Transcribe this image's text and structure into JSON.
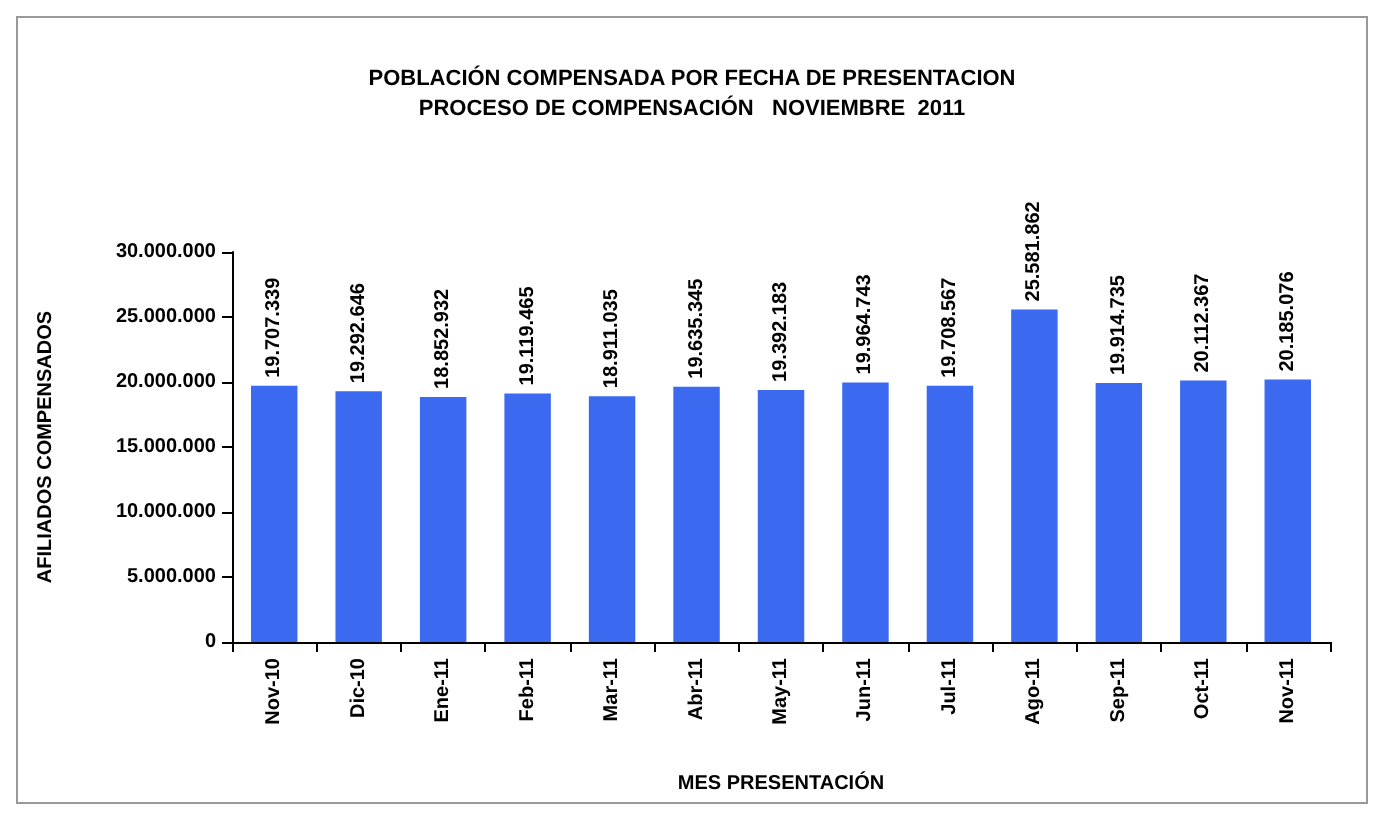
{
  "chart_data": {
    "type": "bar",
    "title": "POBLACIÓN COMPENSADA POR FECHA DE PRESENTACION",
    "subtitle": "PROCESO DE COMPENSACIÓN   NOVIEMBRE  2011",
    "xlabel": "MES PRESENTACIÓN",
    "ylabel": "AFILIADOS COMPENSADOS",
    "categories": [
      "Nov-10",
      "Dic-10",
      "Ene-11",
      "Feb-11",
      "Mar-11",
      "Abr-11",
      "May-11",
      "Jun-11",
      "Jul-11",
      "Ago-11",
      "Sep-11",
      "Oct-11",
      "Nov-11"
    ],
    "values": [
      19707339,
      19292646,
      18852932,
      19119465,
      18911035,
      19635345,
      19392183,
      19964743,
      19708567,
      25581862,
      19914735,
      20112367,
      20185076
    ],
    "value_labels": [
      "19.707.339",
      "19.292.646",
      "18.852.932",
      "19.119.465",
      "18.911.035",
      "19.635.345",
      "19.392.183",
      "19.964.743",
      "19.708.567",
      "25.581.862",
      "19.914.735",
      "20.112.367",
      "20.185.076"
    ],
    "color": "#3b6af0",
    "ylim": [
      0,
      30000000
    ],
    "yticks": [
      {
        "value": 0,
        "label": "0"
      },
      {
        "value": 5000000,
        "label": "5.000.000"
      },
      {
        "value": 10000000,
        "label": "10.000.000"
      },
      {
        "value": 15000000,
        "label": "15.000.000"
      },
      {
        "value": 20000000,
        "label": "20.000.000"
      },
      {
        "value": 25000000,
        "label": "25.000.000"
      },
      {
        "value": 30000000,
        "label": "30.000.000"
      }
    ],
    "grid": false
  }
}
